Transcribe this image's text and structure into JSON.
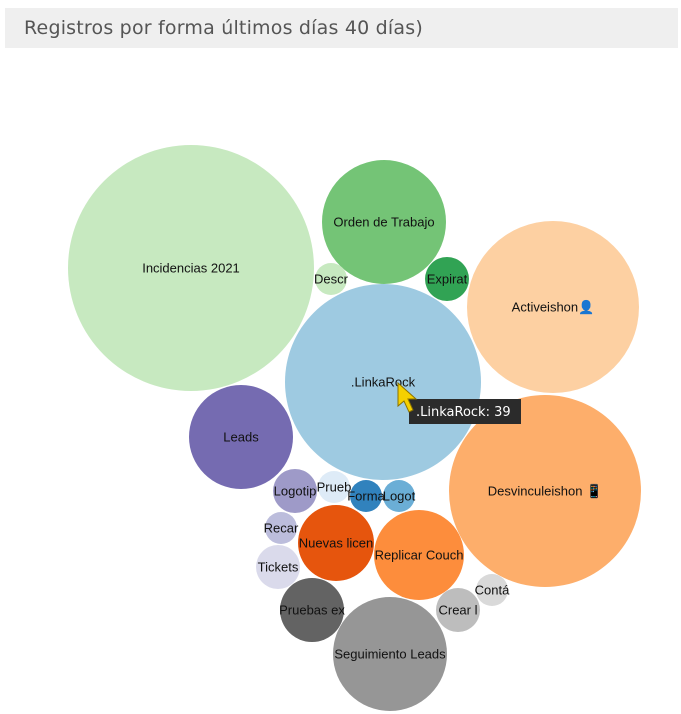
{
  "header": {
    "title": "Registros por forma últimos días 40 días)"
  },
  "chart_data": {
    "type": "bubble",
    "title": "Registros por forma últimos días 40 días)",
    "bubbles": [
      {
        "label": "Incidencias 2021",
        "color": "#c7e9c0"
      },
      {
        "label": "Orden de Trabajo",
        "color": "#74c476"
      },
      {
        "label": "Descr",
        "color": "#c7e9c0"
      },
      {
        "label": "Expirat",
        "color": "#31a354"
      },
      {
        "label": "Activeishon👤",
        "color": "#fdd0a2"
      },
      {
        "label": ".LinkaRock",
        "value": 39,
        "color": "#9ecae1"
      },
      {
        "label": "Leads",
        "color": "#756bb1"
      },
      {
        "label": "Desvinculeishon 📱",
        "color": "#fdae6b"
      },
      {
        "label": "Logotip",
        "color": "#9e9ac8"
      },
      {
        "label": "Prueb",
        "color": "#deebf7"
      },
      {
        "label": "Forma",
        "color": "#3182bd"
      },
      {
        "label": "Logot",
        "color": "#6baed6"
      },
      {
        "label": "Recar",
        "color": "#bcbddc"
      },
      {
        "label": "Nuevas licen",
        "color": "#e6550d"
      },
      {
        "label": "Replicar Couch",
        "color": "#fd8d3c"
      },
      {
        "label": "Tickets",
        "color": "#dadaeb"
      },
      {
        "label": "Contá",
        "color": "#d9d9d9"
      },
      {
        "label": "Crear l",
        "color": "#bdbdbd"
      },
      {
        "label": "Pruebas ex",
        "color": "#636363"
      },
      {
        "label": "Seguimiento Leads",
        "color": "#969696"
      }
    ],
    "tooltip": {
      "text": ".LinkaRock: 39",
      "pointer_color": "#f5d000"
    }
  }
}
